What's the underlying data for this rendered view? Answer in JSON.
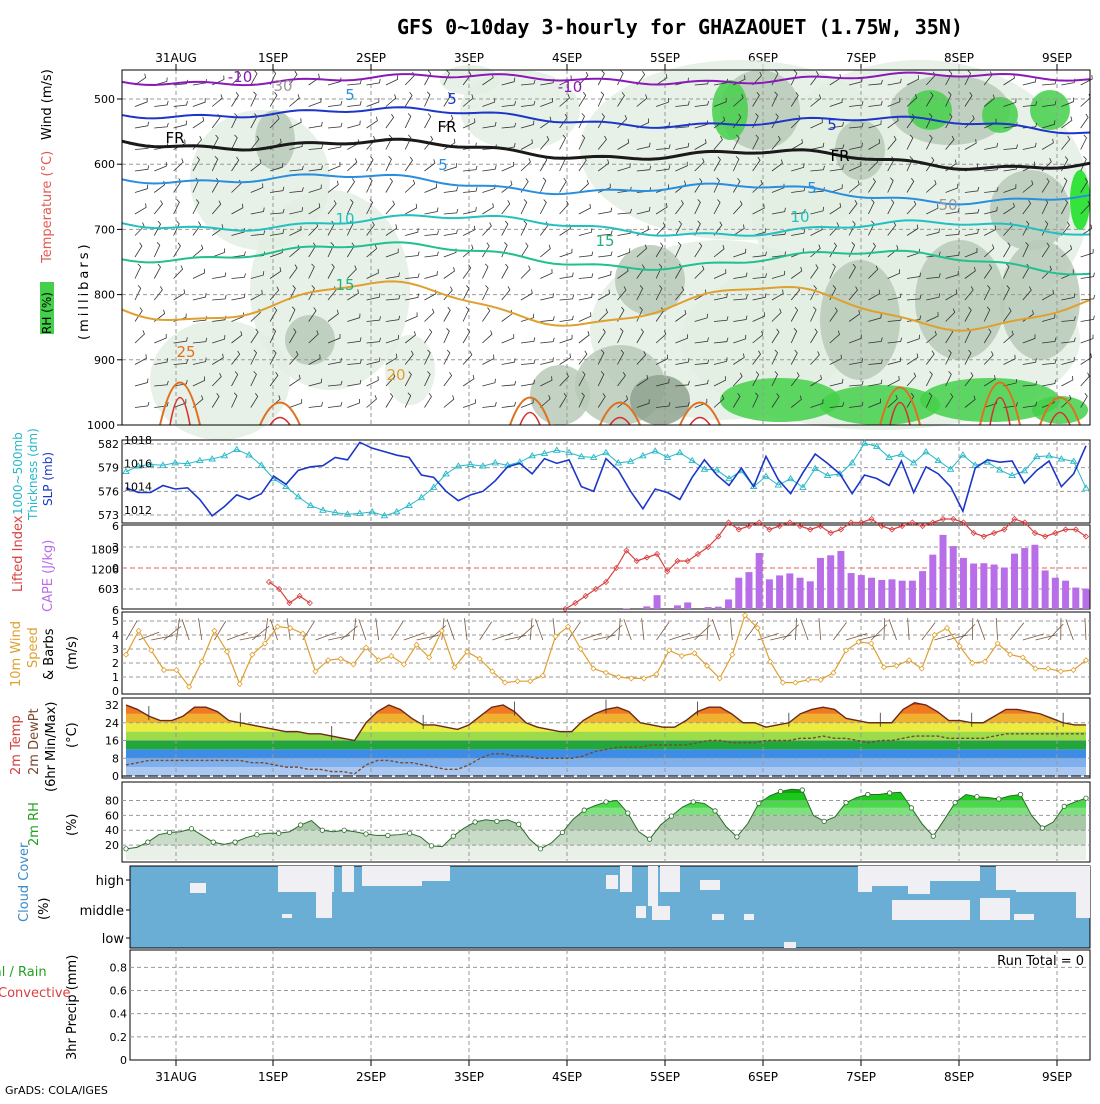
{
  "title": "GFS 0~10day 3-hourly for GHAZAOUET (1.75W, 35N)",
  "credit": "GrADS: COLA/IGES",
  "run_total_label": "Run Total = 0",
  "colors": {
    "rh_light": "#e3efe3",
    "rh_mid": "#b9cab9",
    "rh_dark": "#8fa38f",
    "rh_green": "#44d04a",
    "rh_bright": "#14e01c",
    "thickness": "#25b8c8",
    "slp": "#1c36c8",
    "lifted_index": "#d84040",
    "cape": "#b86ee8",
    "wind10m": "#e0a030",
    "cloud": "#6aaed6",
    "dewpoint": "#7a4a30"
  },
  "panel_labels": {
    "upper": {
      "rh": "RH (%)",
      "temperature": "Temperature (°C)",
      "wind": "Wind (m/s)",
      "pressure": "(millibars)"
    },
    "slp": {
      "thickness": "1000~500mb",
      "thickness2": "Thickness (dm)",
      "slp": "SLP (mb)"
    },
    "li": {
      "li": "Lifted Index",
      "cape": "CAPE (J/kg)"
    },
    "wind": {
      "line1": "10m Wind",
      "line2": "Speed",
      "line3": "& Barbs",
      "unit": "(m/s)"
    },
    "temp": {
      "line1": "2m Temp",
      "line2": "2m DewPt",
      "line3": "(6hr Min/Max)",
      "unit": "(°C)"
    },
    "rh": {
      "line1": "2m RH",
      "unit": "(%)"
    },
    "cloud": {
      "line1": "Cloud Cover",
      "unit": "(%)"
    },
    "precip": {
      "line1": "Total / Rain",
      "line2": "Convective",
      "line3": "3hr Precip (mm)"
    }
  },
  "chart_data": {
    "type": "line",
    "x_dates": [
      "31AUG",
      "1SEP",
      "2SEP",
      "3SEP",
      "4SEP",
      "5SEP",
      "6SEP",
      "7SEP",
      "8SEP",
      "9SEP"
    ],
    "upper_air": {
      "pressure_ticks": [
        500,
        600,
        700,
        800,
        900,
        1000
      ],
      "contour_labels": [
        "-10",
        "-10",
        "5",
        "5",
        "5",
        "5",
        "FR",
        "FR",
        "FR",
        "5",
        "10",
        "10",
        "15",
        "15",
        "20",
        "25",
        "30",
        "50"
      ]
    },
    "thickness_dm": {
      "ticks": [
        573,
        576,
        579,
        582
      ],
      "values": [
        578.5,
        579.2,
        579.4,
        579.3,
        579.6,
        579.5,
        579.9,
        580.1,
        580.5,
        581.3,
        580.6,
        579.3,
        577.6,
        576.6,
        575.3,
        574.2,
        573.6,
        573.3,
        573.1,
        573.2,
        573.4,
        572.9,
        573.4,
        574.2,
        575.2,
        576.5,
        578.2,
        579.2,
        579.4,
        579.2,
        579.6,
        579.3,
        579.7,
        580.5,
        580.8,
        581.2,
        580.9,
        580.4,
        580.3,
        580.9,
        579.6,
        579.8,
        580.5,
        581.1,
        580.3,
        580.9,
        579.9,
        578.8,
        578.7,
        577.6,
        578.6,
        576.6,
        577.9,
        576.8,
        577.6,
        576.5,
        578.9,
        578.0,
        578.2,
        579.6,
        582.1,
        581.7,
        580.3,
        580.7,
        579.6,
        581.0,
        579.9,
        578.8,
        580.6,
        579.3,
        579.7,
        578.7,
        578.0,
        578.6,
        580.4,
        580.5,
        580.1,
        579.8,
        576.4
      ]
    },
    "slp_mb": {
      "ticks": [
        1012,
        1014,
        1016,
        1018
      ],
      "values": [
        1013.9,
        1013.5,
        1013.5,
        1014.1,
        1013.8,
        1013.9,
        1012.9,
        1011.5,
        1012.3,
        1013.3,
        1012.9,
        1013.4,
        1014.9,
        1014.2,
        1015.4,
        1015.7,
        1015.8,
        1016.5,
        1016.3,
        1017.8,
        1017.3,
        1017.0,
        1016.7,
        1016.5,
        1015.0,
        1014.8,
        1013.6,
        1012.8,
        1013.3,
        1013.6,
        1014.5,
        1015.7,
        1016.0,
        1015.1,
        1016.4,
        1016.0,
        1016.3,
        1014.0,
        1013.6,
        1016.4,
        1015.4,
        1013.6,
        1012.1,
        1013.8,
        1013.5,
        1012.9,
        1014.8,
        1016.3,
        1015.0,
        1014.1,
        1015.6,
        1014.0,
        1016.6,
        1014.6,
        1013.4,
        1015.2,
        1016.8,
        1016.0,
        1015.1,
        1013.4,
        1015.0,
        1014.7,
        1014.1,
        1016.2,
        1013.5,
        1015.7,
        1015.1,
        1014.0,
        1011.9,
        1015.6,
        1016.3,
        1016.1,
        1016.2,
        1014.3,
        1015.4,
        1016.2,
        1014.0,
        1015.1,
        1017.5
      ]
    },
    "lifted_index": {
      "ticks": [
        6,
        3,
        0,
        -3,
        -6
      ],
      "values": [
        8,
        8,
        7.5,
        7.5,
        7.5,
        7.5,
        7.5,
        7.5,
        7,
        7,
        7,
        7,
        7,
        6.5,
        2,
        3,
        5,
        4,
        5,
        7,
        7,
        8,
        8,
        8,
        8,
        8,
        8,
        8,
        8,
        8,
        8,
        8,
        8,
        8,
        8,
        8,
        8,
        8,
        7.5,
        7,
        7,
        6.5,
        6.5,
        6,
        5,
        4,
        3,
        2,
        0,
        -2.5,
        -1,
        -1.5,
        -2,
        0.5,
        -1,
        -1,
        -2,
        -3,
        -4.5,
        -6.5,
        -5.5,
        -6,
        -6.5,
        -5.5,
        -6,
        -6.5,
        -6,
        -5.5,
        -6,
        -5,
        -5.5,
        -6.5,
        -6.5,
        -7,
        -6,
        -5.5,
        -6,
        -6.5,
        -6,
        -6.5,
        -7,
        -7,
        -6.5,
        -5,
        -4.5,
        -5,
        -5.5,
        -7,
        -6.5,
        -5,
        -4.5,
        -5,
        -5.5,
        -5.5,
        -4.5
      ]
    },
    "cape_jkg": {
      "ticks": [
        603,
        1206,
        1809
      ],
      "values": [
        0,
        0,
        0,
        0,
        0,
        0,
        0,
        0,
        0,
        0,
        0,
        0,
        0,
        0,
        0,
        0,
        0,
        0,
        0,
        0,
        0,
        0,
        0,
        0,
        0,
        0,
        0,
        0,
        0,
        0,
        0,
        0,
        0,
        0,
        0,
        0,
        0,
        0,
        0,
        0,
        0,
        0,
        0,
        0,
        0,
        0,
        0,
        0,
        0,
        20,
        0,
        80,
        420,
        0,
        110,
        200,
        0,
        60,
        70,
        290,
        950,
        1120,
        1700,
        900,
        1020,
        1080,
        950,
        840,
        1550,
        1630,
        1760,
        1090,
        1030,
        950,
        880,
        900,
        860,
        860,
        1150,
        1650,
        2250,
        1910,
        1550,
        1380,
        1390,
        1350,
        1260,
        1680,
        1850,
        1950,
        1170,
        950,
        860,
        650,
        620
      ]
    },
    "wind10m_ms": {
      "ticks": [
        0,
        1,
        2,
        3,
        4,
        5
      ],
      "values": [
        2.6,
        4.3,
        2.9,
        1.5,
        1.5,
        0.3,
        2.1,
        4.3,
        2.8,
        0.5,
        2.6,
        3.4,
        4.6,
        4.5,
        4.1,
        1.4,
        2.2,
        2.3,
        1.9,
        3.1,
        2.2,
        2.5,
        1.9,
        3.3,
        2.4,
        4.3,
        1.7,
        2.8,
        2.3,
        1.4,
        0.6,
        0.7,
        0.7,
        1.1,
        3.9,
        4.6,
        3.0,
        1.6,
        1.3,
        1.0,
        0.9,
        0.9,
        1.2,
        2.9,
        2.5,
        2.7,
        1.8,
        0.9,
        2.6,
        5.4,
        4.5,
        2.1,
        0.6,
        0.6,
        0.8,
        0.8,
        1.3,
        2.9,
        3.5,
        3.4,
        1.7,
        1.8,
        2.2,
        1.6,
        4.0,
        4.5,
        3.2,
        2.0,
        2.1,
        3.4,
        2.6,
        2.4,
        1.6,
        1.6,
        1.4,
        1.5,
        2.2
      ]
    },
    "temp2m_c": {
      "ticks": [
        0,
        8,
        16,
        24,
        32
      ],
      "values": [
        32,
        30,
        27,
        25,
        25,
        27,
        31,
        31,
        29,
        25,
        24,
        23,
        22,
        21,
        20,
        20,
        19,
        19,
        18,
        17,
        16,
        24,
        29,
        32,
        30,
        26,
        23,
        23,
        22,
        21,
        23,
        27,
        31,
        32,
        29,
        24,
        22,
        21,
        20,
        20,
        25,
        28,
        30,
        31,
        29,
        24,
        23,
        22,
        22,
        25,
        29,
        31,
        31,
        28,
        24,
        24,
        22,
        23,
        24,
        28,
        30,
        31,
        30,
        26,
        25,
        24,
        24,
        24,
        30,
        33,
        32,
        29,
        25,
        25,
        24,
        24,
        27,
        30,
        30,
        29,
        28,
        26,
        24,
        23,
        23
      ]
    },
    "dewpt2m_c": {
      "values": [
        5,
        6,
        7,
        7,
        7,
        7,
        7,
        7,
        7,
        7,
        7,
        6,
        6,
        5,
        4,
        4,
        3,
        3,
        2,
        2,
        1,
        5,
        7,
        7,
        6,
        6,
        5,
        4,
        3,
        3,
        5,
        8,
        10,
        10,
        9,
        9,
        8,
        8,
        8,
        8,
        9,
        11,
        12,
        13,
        13,
        13,
        14,
        14,
        14,
        14,
        15,
        16,
        16,
        15,
        15,
        15,
        16,
        16,
        16,
        17,
        17,
        18,
        17,
        17,
        16,
        15,
        16,
        16,
        17,
        18,
        18,
        18,
        17,
        17,
        17,
        17,
        18,
        19,
        19,
        19,
        19,
        19,
        19,
        19,
        19
      ]
    },
    "rh2m_pct": {
      "ticks": [
        20,
        40,
        60,
        80
      ],
      "values": [
        15,
        17,
        24,
        34,
        37,
        38,
        42,
        33,
        24,
        21,
        24,
        30,
        34,
        36,
        36,
        38,
        47,
        53,
        40,
        38,
        40,
        38,
        35,
        33,
        33,
        34,
        36,
        31,
        19,
        18,
        32,
        43,
        51,
        54,
        52,
        54,
        48,
        28,
        15,
        23,
        37,
        55,
        67,
        73,
        78,
        80,
        63,
        38,
        28,
        47,
        59,
        71,
        78,
        76,
        66,
        45,
        31,
        49,
        76,
        86,
        92,
        95,
        94,
        60,
        52,
        58,
        77,
        84,
        88,
        88,
        90,
        91,
        70,
        48,
        32,
        54,
        77,
        88,
        85,
        84,
        82,
        86,
        88,
        60,
        43,
        51,
        72,
        78,
        83
      ]
    },
    "cloud_cover": {
      "levels": [
        "high",
        "middle",
        "low"
      ]
    },
    "precip_3hr_mm": {
      "ticks": [
        0,
        0.2,
        0.4,
        0.6,
        0.8
      ],
      "total": []
    }
  }
}
